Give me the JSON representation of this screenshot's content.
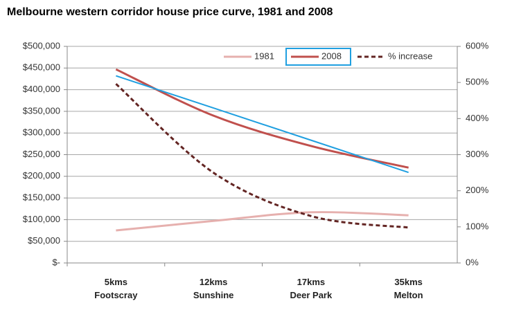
{
  "chart_data": {
    "type": "line",
    "title": "Melbourne western corridor house price curve, 1981 and 2008",
    "categories": [
      "5kms\nFootscray",
      "12kms\nSunshine",
      "17kms\nDeer Park",
      "35kms\nMelton"
    ],
    "series": [
      {
        "name": "1981",
        "color": "#e6b0ae",
        "values": [
          75000,
          97000,
          117000,
          110000
        ]
      },
      {
        "name": "2008",
        "color": "#c0504d",
        "values": [
          447000,
          340000,
          270000,
          220000
        ]
      },
      {
        "name": "% increase",
        "color": "#632523",
        "style": "dashed",
        "axis": "y2",
        "values": [
          496,
          250,
          130,
          98
        ]
      },
      {
        "color": "#1f9fe0",
        "values": [
          432000,
          357667,
          283333,
          209000
        ]
      }
    ],
    "ylim": [
      0,
      500000
    ],
    "yticks": [
      {
        "value": 0,
        "label": "$-"
      },
      {
        "value": 50000,
        "label": "$50,000"
      },
      {
        "value": 100000,
        "label": "$100,000"
      },
      {
        "value": 150000,
        "label": "$150,000"
      },
      {
        "value": 200000,
        "label": "$200,000"
      },
      {
        "value": 250000,
        "label": "$250,000"
      },
      {
        "value": 300000,
        "label": "$300,000"
      },
      {
        "value": 350000,
        "label": "$350,000"
      },
      {
        "value": 400000,
        "label": "$400,000"
      },
      {
        "value": 450000,
        "label": "$450,000"
      },
      {
        "value": 500000,
        "label": "$500,000"
      }
    ],
    "y2lim": [
      0,
      600
    ],
    "y2ticks": [
      {
        "value": 0,
        "label": "0%"
      },
      {
        "value": 100,
        "label": "100%"
      },
      {
        "value": 200,
        "label": "200%"
      },
      {
        "value": 300,
        "label": "300%"
      },
      {
        "value": 400,
        "label": "400%"
      },
      {
        "value": 500,
        "label": "500%"
      },
      {
        "value": 600,
        "label": "600%"
      }
    ],
    "grid": true,
    "legend": "top-right"
  }
}
